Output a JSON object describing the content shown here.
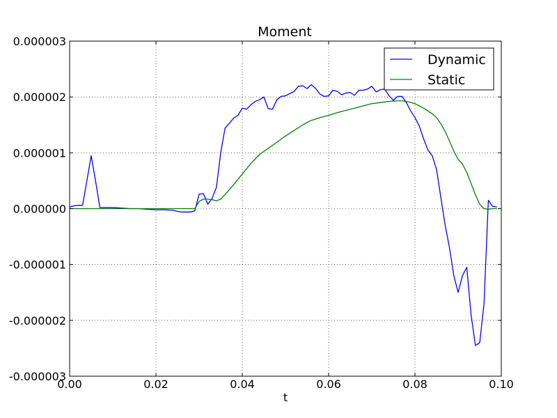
{
  "chart_data": {
    "type": "line",
    "title": "Moment",
    "xlabel": "t",
    "ylabel": "",
    "xlim": [
      0.0,
      0.1
    ],
    "ylim": [
      -3e-06,
      3e-06
    ],
    "xticks": [
      "0.00",
      "0.02",
      "0.04",
      "0.06",
      "0.08",
      "0.10"
    ],
    "yticks": [
      "0.000003",
      "0.000002",
      "0.000001",
      "0.000000",
      "-0.000001",
      "-0.000002",
      "-0.000003"
    ],
    "grid": true,
    "legend_position": "top-right",
    "series": [
      {
        "name": "Dynamic",
        "color": "#0000ff",
        "x": [
          0.0,
          0.001,
          0.002,
          0.003,
          0.004,
          0.005,
          0.006,
          0.007,
          0.008,
          0.009,
          0.01,
          0.012,
          0.014,
          0.016,
          0.018,
          0.02,
          0.022,
          0.024,
          0.025,
          0.026,
          0.027,
          0.028,
          0.029,
          0.03,
          0.031,
          0.032,
          0.033,
          0.034,
          0.035,
          0.036,
          0.037,
          0.038,
          0.039,
          0.04,
          0.041,
          0.042,
          0.043,
          0.044,
          0.045,
          0.046,
          0.047,
          0.048,
          0.049,
          0.05,
          0.051,
          0.052,
          0.053,
          0.054,
          0.055,
          0.056,
          0.057,
          0.058,
          0.059,
          0.06,
          0.061,
          0.062,
          0.063,
          0.064,
          0.065,
          0.066,
          0.067,
          0.068,
          0.069,
          0.07,
          0.071,
          0.072,
          0.073,
          0.074,
          0.075,
          0.076,
          0.077,
          0.078,
          0.079,
          0.08,
          0.081,
          0.082,
          0.083,
          0.084,
          0.085,
          0.086,
          0.087,
          0.088,
          0.089,
          0.09,
          0.091,
          0.092,
          0.093,
          0.094,
          0.095,
          0.096,
          0.097,
          0.098,
          0.099
        ],
        "y": [
          3e-08,
          5e-08,
          6e-08,
          6e-08,
          5e-07,
          9.5e-07,
          5e-07,
          2e-08,
          2e-08,
          2e-08,
          2e-08,
          1e-08,
          0.0,
          0.0,
          -1e-08,
          -2e-08,
          -2e-08,
          -3e-08,
          -5e-08,
          -6e-08,
          -6e-08,
          -6e-08,
          -4e-08,
          2.6e-07,
          2.7e-07,
          8e-08,
          1.8e-07,
          3.8e-07,
          1e-06,
          1.44e-06,
          1.53e-06,
          1.62e-06,
          1.67e-06,
          1.8e-06,
          1.78e-06,
          1.86e-06,
          1.92e-06,
          1.95e-06,
          2e-06,
          1.79e-06,
          1.78e-06,
          1.95e-06,
          2.01e-06,
          2.02e-06,
          2.06e-06,
          2.1e-06,
          2.19e-06,
          2.2e-06,
          2.15e-06,
          2.22e-06,
          2.15e-06,
          2.05e-06,
          2.01e-06,
          2.02e-06,
          2.12e-06,
          2.1e-06,
          2.04e-06,
          2.07e-06,
          2.08e-06,
          2.03e-06,
          2.12e-06,
          2.12e-06,
          2.14e-06,
          2.19e-06,
          2.09e-06,
          2.13e-06,
          2.14e-06,
          2.02e-06,
          1.94e-06,
          2.01e-06,
          2.01e-06,
          1.9e-06,
          1.75e-06,
          1.63e-06,
          1.48e-06,
          1.25e-06,
          1.05e-06,
          9.5e-07,
          7e-07,
          2e-07,
          -3e-07,
          -7e-07,
          -1.2e-06,
          -1.5e-06,
          -1.2e-06,
          -1.05e-06,
          -1.9e-06,
          -2.45e-06,
          -2.4e-06,
          -1.7e-06,
          1.5e-07,
          4e-08,
          3e-08
        ]
      },
      {
        "name": "Static",
        "color": "#008000",
        "x": [
          0.0,
          0.005,
          0.01,
          0.015,
          0.02,
          0.025,
          0.029,
          0.03,
          0.031,
          0.032,
          0.033,
          0.034,
          0.035,
          0.036,
          0.038,
          0.04,
          0.042,
          0.044,
          0.046,
          0.048,
          0.05,
          0.052,
          0.054,
          0.056,
          0.058,
          0.06,
          0.062,
          0.064,
          0.066,
          0.068,
          0.07,
          0.072,
          0.074,
          0.076,
          0.077,
          0.078,
          0.079,
          0.08,
          0.081,
          0.082,
          0.083,
          0.084,
          0.085,
          0.086,
          0.087,
          0.088,
          0.089,
          0.09,
          0.091,
          0.092,
          0.093,
          0.094,
          0.095,
          0.096,
          0.097,
          0.098,
          0.099
        ],
        "y": [
          0.0,
          0.0,
          0.0,
          0.0,
          0.0,
          0.0,
          0.0,
          1.3e-07,
          1.7e-07,
          1.7e-07,
          1.6e-07,
          1.4e-07,
          1.7e-07,
          2.5e-07,
          4.3e-07,
          6.2e-07,
          8.1e-07,
          9.7e-07,
          1.08e-06,
          1.19e-06,
          1.3e-06,
          1.4e-06,
          1.5e-06,
          1.58e-06,
          1.63e-06,
          1.67e-06,
          1.72e-06,
          1.76e-06,
          1.8e-06,
          1.84e-06,
          1.88e-06,
          1.9e-06,
          1.92e-06,
          1.93e-06,
          1.93e-06,
          1.92e-06,
          1.9e-06,
          1.88e-06,
          1.84e-06,
          1.8e-06,
          1.75e-06,
          1.7e-06,
          1.63e-06,
          1.52e-06,
          1.38e-06,
          1.21e-06,
          1.03e-06,
          8.8e-07,
          8e-07,
          6.5e-07,
          4.5e-07,
          2.5e-07,
          8e-08,
          0.0,
          -1e-08,
          0.0,
          0.0
        ]
      }
    ]
  }
}
